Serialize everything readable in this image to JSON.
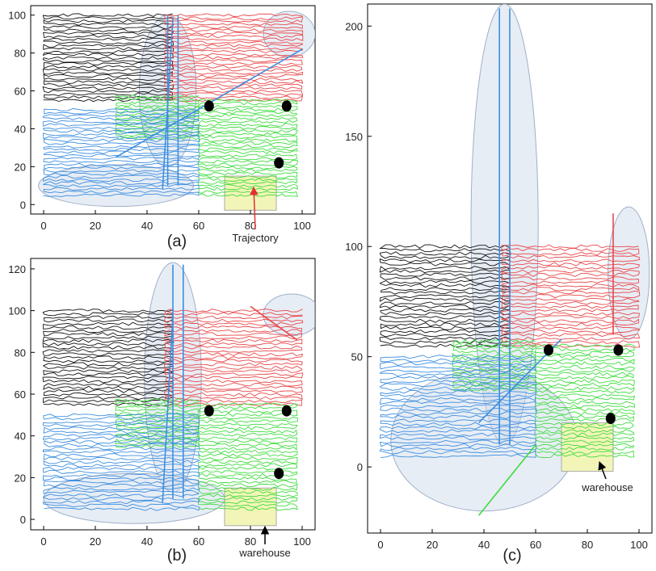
{
  "figure": {
    "panels": [
      {
        "id": "a",
        "label": "(a)"
      },
      {
        "id": "b",
        "label": "(b)"
      },
      {
        "id": "c",
        "label": "(c)"
      }
    ],
    "annotations": {
      "trajectory": "Trajectory",
      "warehouse_b": "warehouse",
      "warehouse_c": "warehouse"
    }
  },
  "colors": {
    "black_robot": "#111111",
    "red_robot": "#e8484a",
    "green_robot": "#3fdc3f",
    "blue_robot": "#3d8ee0",
    "highlight_ellipse": "#c9d6e8",
    "warehouse_fill": "#f3f5b8",
    "arrow_red": "#e53030",
    "frame": "#000000"
  },
  "chart_data": [
    {
      "type": "line",
      "panel": "(a)",
      "xlim": [
        -5,
        105
      ],
      "ylim": [
        -5,
        105
      ],
      "xticks": [
        0,
        20,
        40,
        60,
        80,
        100
      ],
      "yticks": [
        0,
        20,
        40,
        60,
        80,
        100
      ],
      "regions": [
        {
          "color": "black",
          "x": [
            0,
            50
          ],
          "y": [
            55,
            100
          ]
        },
        {
          "color": "red",
          "x": [
            47,
            100
          ],
          "y": [
            55,
            100
          ]
        },
        {
          "color": "green",
          "x": [
            60,
            98
          ],
          "y": [
            5,
            55
          ]
        },
        {
          "color": "green",
          "x": [
            28,
            60
          ],
          "y": [
            35,
            57
          ]
        },
        {
          "color": "blue",
          "x": [
            0,
            60
          ],
          "y": [
            5,
            50
          ]
        }
      ],
      "robots": [
        [
          64,
          52
        ],
        [
          94,
          52
        ],
        [
          91,
          22
        ]
      ],
      "warehouse": {
        "x": [
          70,
          90
        ],
        "y": [
          -3,
          15
        ]
      },
      "outliers": [
        {
          "color": "blue",
          "points": [
            [
              48,
              100
            ],
            [
              48,
              10
            ]
          ]
        },
        {
          "color": "blue",
          "points": [
            [
              52,
              100
            ],
            [
              52,
              10
            ]
          ]
        },
        {
          "color": "blue",
          "points": [
            [
              28,
              25
            ],
            [
              100,
              82
            ]
          ]
        },
        {
          "color": "blue",
          "points": [
            [
              46,
              8
            ],
            [
              50,
              98
            ]
          ]
        }
      ],
      "ellipses": [
        {
          "cx": 48,
          "cy": 60,
          "rx": 11,
          "ry": 40
        },
        {
          "cx": 95,
          "cy": 90,
          "rx": 10,
          "ry": 12
        },
        {
          "cx": 28,
          "cy": 10,
          "rx": 30,
          "ry": 11
        }
      ]
    },
    {
      "type": "line",
      "panel": "(b)",
      "xlim": [
        -5,
        105
      ],
      "ylim": [
        -5,
        125
      ],
      "xticks": [
        0,
        20,
        40,
        60,
        80,
        100
      ],
      "yticks": [
        0,
        20,
        40,
        60,
        80,
        100,
        120
      ],
      "regions": [
        {
          "color": "black",
          "x": [
            0,
            50
          ],
          "y": [
            55,
            100
          ]
        },
        {
          "color": "red",
          "x": [
            47,
            100
          ],
          "y": [
            55,
            100
          ]
        },
        {
          "color": "green",
          "x": [
            60,
            98
          ],
          "y": [
            5,
            55
          ]
        },
        {
          "color": "green",
          "x": [
            28,
            60
          ],
          "y": [
            35,
            57
          ]
        },
        {
          "color": "blue",
          "x": [
            0,
            60
          ],
          "y": [
            5,
            50
          ]
        }
      ],
      "robots": [
        [
          64,
          52
        ],
        [
          94,
          52
        ],
        [
          91,
          22
        ]
      ],
      "warehouse": {
        "x": [
          70,
          90
        ],
        "y": [
          -3,
          15
        ]
      },
      "outliers": [
        {
          "color": "blue",
          "points": [
            [
              50,
              122
            ],
            [
              50,
              10
            ]
          ]
        },
        {
          "color": "blue",
          "points": [
            [
              54,
              122
            ],
            [
              54,
              10
            ]
          ]
        },
        {
          "color": "blue",
          "points": [
            [
              46,
              8
            ],
            [
              50,
              98
            ]
          ]
        },
        {
          "color": "red",
          "points": [
            [
              80,
              102
            ],
            [
              98,
              86
            ]
          ]
        }
      ],
      "ellipses": [
        {
          "cx": 50,
          "cy": 68,
          "rx": 11,
          "ry": 55
        },
        {
          "cx": 96,
          "cy": 98,
          "rx": 11,
          "ry": 10
        },
        {
          "cx": 35,
          "cy": 10,
          "rx": 35,
          "ry": 12
        }
      ]
    },
    {
      "type": "line",
      "panel": "(c)",
      "xlim": [
        -5,
        105
      ],
      "ylim": [
        -30,
        210
      ],
      "xticks": [
        0,
        20,
        40,
        60,
        80,
        100
      ],
      "yticks": [
        0,
        50,
        100,
        150,
        200
      ],
      "regions": [
        {
          "color": "black",
          "x": [
            0,
            50
          ],
          "y": [
            55,
            100
          ]
        },
        {
          "color": "red",
          "x": [
            47,
            100
          ],
          "y": [
            55,
            100
          ]
        },
        {
          "color": "green",
          "x": [
            60,
            98
          ],
          "y": [
            5,
            55
          ]
        },
        {
          "color": "green",
          "x": [
            28,
            60
          ],
          "y": [
            35,
            57
          ]
        },
        {
          "color": "blue",
          "x": [
            0,
            60
          ],
          "y": [
            5,
            50
          ]
        }
      ],
      "robots": [
        [
          65,
          53
        ],
        [
          92,
          53
        ],
        [
          89,
          22
        ]
      ],
      "warehouse": {
        "x": [
          70,
          90
        ],
        "y": [
          -2,
          20
        ]
      },
      "outliers": [
        {
          "color": "blue",
          "points": [
            [
              46,
              208
            ],
            [
              46,
              10
            ]
          ]
        },
        {
          "color": "blue",
          "points": [
            [
              50,
              208
            ],
            [
              50,
              10
            ]
          ]
        },
        {
          "color": "blue",
          "points": [
            [
              38,
              20
            ],
            [
              70,
              58
            ]
          ]
        },
        {
          "color": "red",
          "points": [
            [
              90,
              60
            ],
            [
              90,
              115
            ]
          ]
        },
        {
          "color": "green",
          "points": [
            [
              38,
              -22
            ],
            [
              60,
              10
            ]
          ]
        }
      ],
      "ellipses": [
        {
          "cx": 48,
          "cy": 110,
          "rx": 13,
          "ry": 100
        },
        {
          "cx": 96,
          "cy": 88,
          "rx": 8,
          "ry": 30
        },
        {
          "cx": 40,
          "cy": 12,
          "rx": 36,
          "ry": 32
        }
      ]
    }
  ]
}
